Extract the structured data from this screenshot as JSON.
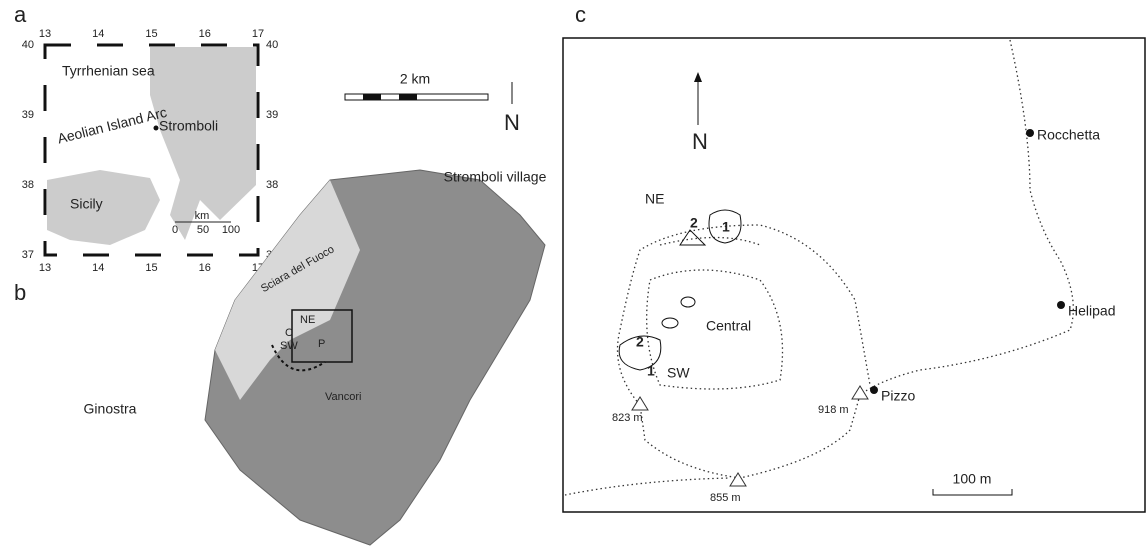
{
  "panel_a": {
    "label": "a",
    "lon_ticks": [
      13,
      14,
      15,
      16,
      17
    ],
    "lat_ticks": [
      40,
      39,
      38,
      37
    ],
    "sea": "Tyrrhenian sea",
    "arc": "Aeolian Island Arc",
    "island": "Stromboli",
    "sicily": "Sicily",
    "scale_unit": "km",
    "scale_ticks": [
      0,
      50,
      100
    ]
  },
  "panel_b": {
    "label": "b",
    "scale": "2 km",
    "north": "N",
    "village": "Stromboli village",
    "sciara": "Sciara del Fuoco",
    "ginostra": "Ginostra",
    "ne": "NE",
    "c": "C",
    "sw": "SW",
    "p": "P",
    "vancori": "Vancori"
  },
  "panel_c": {
    "label": "c",
    "north": "N",
    "ne": "NE",
    "ne_2": "2",
    "ne_1": "1",
    "central": "Central",
    "sw_2": "2",
    "sw_1": "1",
    "sw": "SW",
    "peak_823": "823 m",
    "peak_855": "855 m",
    "peak_918": "918 m",
    "pizzo": "Pizzo",
    "rocchetta": "Rocchetta",
    "helipad": "Helipad",
    "scale": "100 m"
  }
}
